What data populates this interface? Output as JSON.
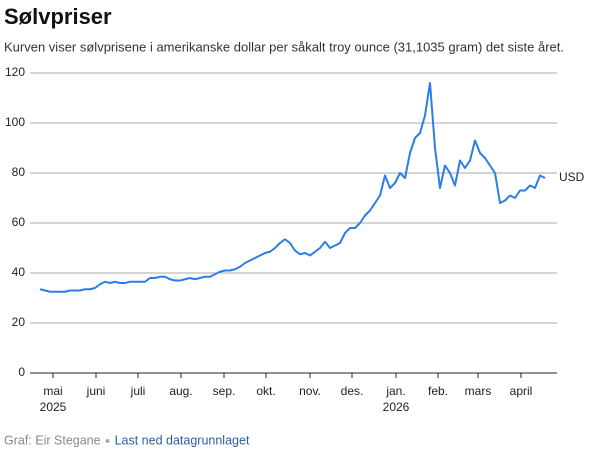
{
  "chart_data": {
    "type": "line",
    "title": "Sølvpriser",
    "subtitle": "Kurven viser sølvprisene i amerikanske dollar per såkalt troy ounce (31,1035 gram) det siste året.",
    "series": [
      {
        "name": "USD",
        "color": "#2b7de9",
        "values": [
          33.5,
          33,
          32.5,
          32.5,
          32.5,
          32.5,
          33,
          33,
          33,
          33.5,
          33.5,
          34,
          35.5,
          36.5,
          36,
          36.5,
          36,
          36,
          36.5,
          36.5,
          36.5,
          36.5,
          38,
          38,
          38.5,
          38.5,
          37.5,
          37,
          37,
          37.5,
          38,
          37.5,
          38,
          38.5,
          38.5,
          39.5,
          40.5,
          41,
          41,
          41.5,
          42.5,
          44,
          45,
          46,
          47,
          48,
          48.5,
          50,
          52,
          53.5,
          52,
          49,
          47.5,
          48,
          47,
          48.5,
          50,
          52.5,
          50,
          51,
          52,
          56,
          58,
          58,
          60,
          63,
          65,
          68,
          71,
          79,
          74,
          76,
          80,
          78,
          88,
          94,
          96,
          103,
          116,
          90,
          74,
          83,
          80,
          75,
          85,
          82,
          85,
          93,
          88,
          86,
          83,
          80,
          68,
          69,
          71,
          70,
          73,
          73,
          75,
          74,
          79,
          78
        ]
      }
    ],
    "xlim": [
      -2,
      103.4
    ],
    "xticks": [
      {
        "value": 2.6,
        "label": "mai"
      },
      {
        "value": 11.2,
        "label": "juni"
      },
      {
        "value": 19.6,
        "label": "juli"
      },
      {
        "value": 28.2,
        "label": "aug."
      },
      {
        "value": 36.8,
        "label": "sep."
      },
      {
        "value": 45.2,
        "label": "okt."
      },
      {
        "value": 54,
        "label": "nov."
      },
      {
        "value": 62.4,
        "label": "des."
      },
      {
        "value": 71.2,
        "label": "jan."
      },
      {
        "value": 79.6,
        "label": "feb."
      },
      {
        "value": 87.6,
        "label": "mars"
      },
      {
        "value": 96.2,
        "label": "april"
      }
    ],
    "year_labels": [
      {
        "value": 2.6,
        "label": "2025"
      },
      {
        "value": 71.2,
        "label": "2026"
      }
    ],
    "ylim": [
      0,
      120
    ],
    "yticks": [
      0,
      20,
      40,
      60,
      80,
      100,
      120
    ],
    "grid": true,
    "source": "Graf: Eir Stegane",
    "download_link": "Last ned datagrunnlaget"
  }
}
